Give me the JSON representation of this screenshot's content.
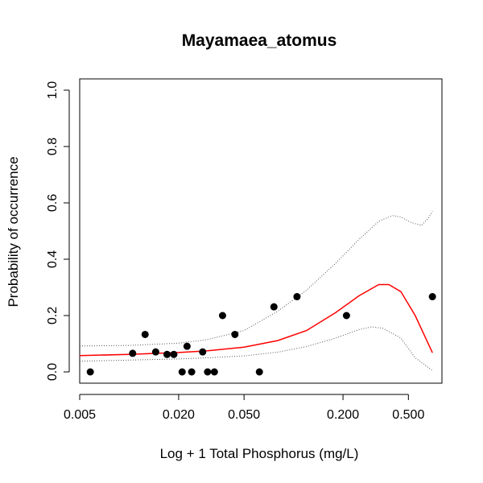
{
  "chart_data": {
    "type": "scatter",
    "title": "Mayamaea_atomus",
    "xlabel": "Log + 1 Total Phosphorus (mg/L)",
    "ylabel": "Probability of occurrence",
    "x_scale": "log",
    "xlim": [
      0.005,
      0.8
    ],
    "ylim": [
      -0.04,
      1.04
    ],
    "x_ticks": [
      0.005,
      0.02,
      0.05,
      0.2,
      0.5
    ],
    "x_tick_labels": [
      "0.005",
      "0.020",
      "0.050",
      "0.200",
      "0.500"
    ],
    "y_ticks": [
      0.0,
      0.2,
      0.4,
      0.6,
      0.8,
      1.0
    ],
    "y_tick_labels": [
      "0.0",
      "0.2",
      "0.4",
      "0.6",
      "0.8",
      "1.0"
    ],
    "grid": false,
    "legend": "none",
    "colors": {
      "fit": "#ff0000",
      "points": "#000000",
      "band": "#555555"
    },
    "points": [
      {
        "x": 0.0058,
        "y": 0.0
      },
      {
        "x": 0.0105,
        "y": 0.066
      },
      {
        "x": 0.0125,
        "y": 0.133
      },
      {
        "x": 0.0145,
        "y": 0.071
      },
      {
        "x": 0.017,
        "y": 0.062
      },
      {
        "x": 0.0187,
        "y": 0.062
      },
      {
        "x": 0.021,
        "y": 0.0
      },
      {
        "x": 0.0225,
        "y": 0.091
      },
      {
        "x": 0.024,
        "y": 0.0
      },
      {
        "x": 0.028,
        "y": 0.071
      },
      {
        "x": 0.03,
        "y": 0.0
      },
      {
        "x": 0.033,
        "y": 0.0
      },
      {
        "x": 0.037,
        "y": 0.2
      },
      {
        "x": 0.044,
        "y": 0.133
      },
      {
        "x": 0.062,
        "y": 0.0
      },
      {
        "x": 0.076,
        "y": 0.231
      },
      {
        "x": 0.105,
        "y": 0.267
      },
      {
        "x": 0.21,
        "y": 0.2
      },
      {
        "x": 0.7,
        "y": 0.267
      }
    ],
    "fit": {
      "x": [
        0.005,
        0.01,
        0.02,
        0.03,
        0.05,
        0.08,
        0.12,
        0.18,
        0.25,
        0.33,
        0.38,
        0.45,
        0.55,
        0.7
      ],
      "y": [
        0.058,
        0.062,
        0.069,
        0.075,
        0.088,
        0.111,
        0.147,
        0.21,
        0.27,
        0.31,
        0.31,
        0.285,
        0.2,
        0.068
      ]
    },
    "upper_band": {
      "x": [
        0.005,
        0.01,
        0.02,
        0.03,
        0.05,
        0.08,
        0.12,
        0.18,
        0.25,
        0.33,
        0.4,
        0.45,
        0.52,
        0.6,
        0.66,
        0.7
      ],
      "y": [
        0.092,
        0.094,
        0.102,
        0.115,
        0.147,
        0.215,
        0.29,
        0.385,
        0.47,
        0.535,
        0.555,
        0.55,
        0.53,
        0.52,
        0.545,
        0.57
      ]
    },
    "lower_band": {
      "x": [
        0.005,
        0.01,
        0.02,
        0.03,
        0.05,
        0.08,
        0.12,
        0.18,
        0.25,
        0.3,
        0.35,
        0.45,
        0.55,
        0.7
      ],
      "y": [
        0.038,
        0.042,
        0.046,
        0.05,
        0.057,
        0.07,
        0.09,
        0.12,
        0.15,
        0.16,
        0.155,
        0.12,
        0.05,
        0.005
      ]
    }
  }
}
